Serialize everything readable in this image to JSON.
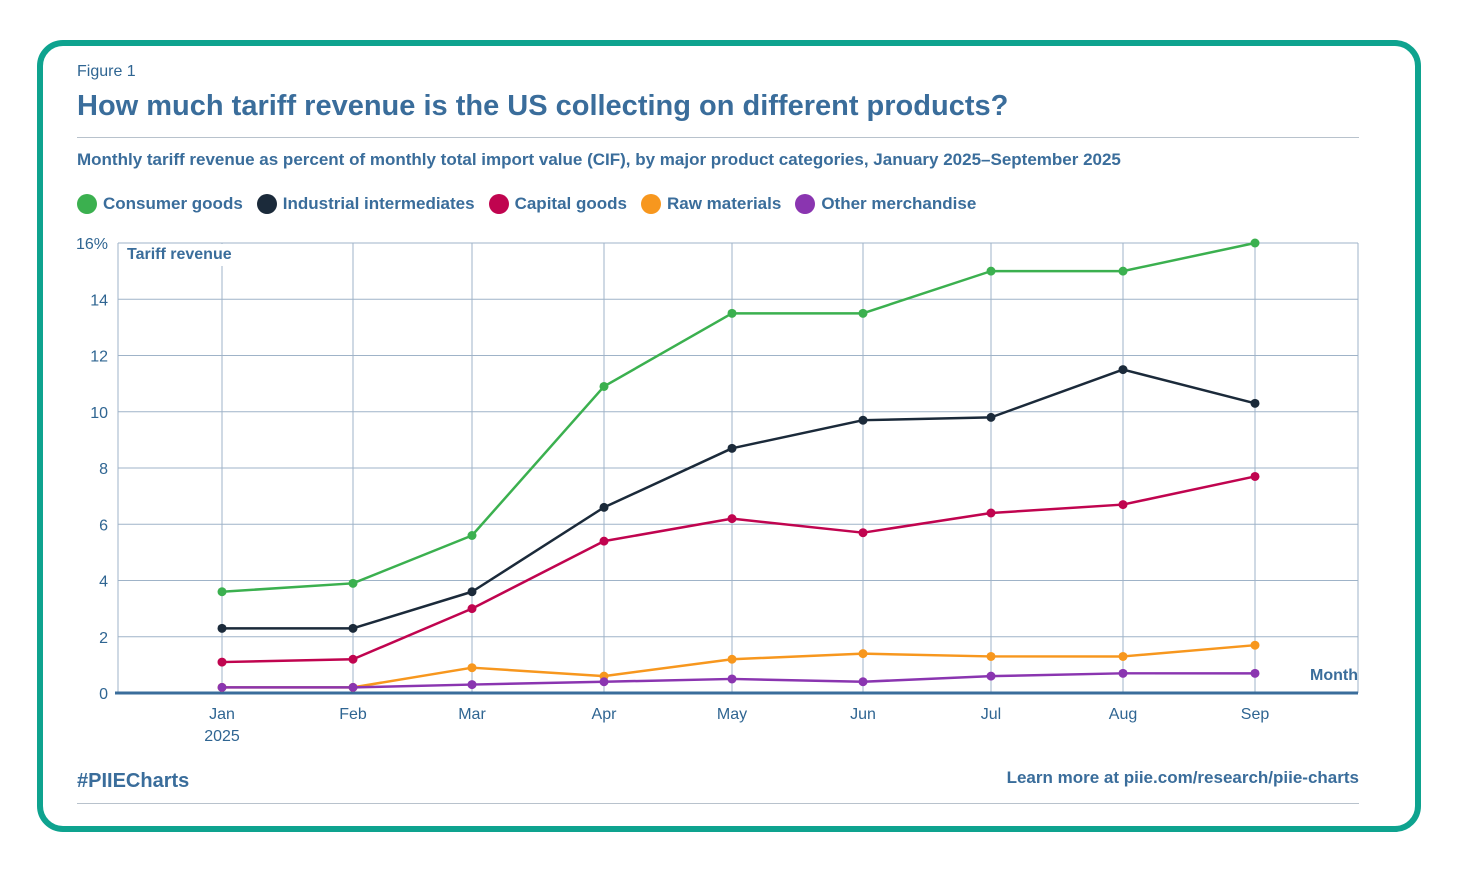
{
  "figure_label": "Figure 1",
  "footer": {
    "hashtag": "#PIIECharts",
    "link": "Learn more at piie.com/research/piie-charts"
  },
  "colors": {
    "frame": "#0ea38f",
    "text": "#3a6d9b"
  },
  "chart_data": {
    "type": "line",
    "title": "How much tariff revenue is the US collecting on different products?",
    "subtitle": "Monthly tariff revenue as percent of monthly total import value (CIF), by major product categories, January 2025–September 2025",
    "xlabel": "Month",
    "ylabel": "Tariff revenue",
    "categories": [
      "Jan",
      "Feb",
      "Mar",
      "Apr",
      "May",
      "Jun",
      "Jul",
      "Aug",
      "Sep"
    ],
    "year_label": "2025",
    "ylim": [
      0,
      16
    ],
    "yticks": [
      "0",
      "2",
      "4",
      "6",
      "8",
      "10",
      "12",
      "14",
      "16%"
    ],
    "grid": true,
    "legend_position": "top-left",
    "series": [
      {
        "name": "Consumer goods",
        "color": "#3bb04f",
        "values": [
          3.6,
          3.9,
          5.6,
          10.9,
          13.5,
          13.5,
          15.0,
          15.0,
          16.0
        ]
      },
      {
        "name": "Industrial intermediates",
        "color": "#1b2a3a",
        "values": [
          2.3,
          2.3,
          3.6,
          6.6,
          8.7,
          9.7,
          9.8,
          11.5,
          10.3
        ]
      },
      {
        "name": "Capital goods",
        "color": "#c0044f",
        "values": [
          1.1,
          1.2,
          3.0,
          5.4,
          6.2,
          5.7,
          6.4,
          6.7,
          7.7
        ]
      },
      {
        "name": "Raw materials",
        "color": "#f7971e",
        "values": [
          0.2,
          0.2,
          0.9,
          0.6,
          1.2,
          1.4,
          1.3,
          1.3,
          1.7
        ]
      },
      {
        "name": "Other merchandise",
        "color": "#8a35b0",
        "values": [
          0.2,
          0.2,
          0.3,
          0.4,
          0.5,
          0.4,
          0.6,
          0.7,
          0.7
        ]
      }
    ]
  }
}
